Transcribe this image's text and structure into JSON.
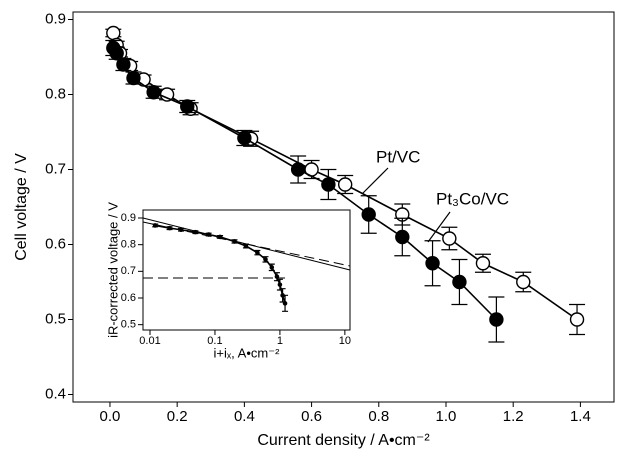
{
  "chart_data": [
    {
      "type": "line",
      "xlabel": "Current density / A•cm⁻²",
      "ylabel": "Cell voltage / V",
      "xlim": [
        -0.11,
        1.5
      ],
      "ylim": [
        0.39,
        0.91
      ],
      "xticks": [
        {
          "value": 0,
          "label": "0.0"
        },
        0.2,
        0.4,
        0.6,
        0.8,
        {
          "value": 1,
          "label": "1.0"
        },
        1.2,
        1.4
      ],
      "yticks": [
        0.4,
        0.5,
        0.6,
        0.7,
        0.8,
        0.9
      ],
      "series": [
        {
          "name": "Pt/VC",
          "marker": "open",
          "color": "#000000",
          "x": [
            0.01,
            0.02,
            0.03,
            0.06,
            0.1,
            0.17,
            0.24,
            0.42,
            0.6,
            0.7,
            0.87,
            1.01,
            1.11,
            1.23,
            1.39
          ],
          "values": [
            0.882,
            0.866,
            0.855,
            0.838,
            0.82,
            0.8,
            0.781,
            0.741,
            0.7,
            0.68,
            0.64,
            0.608,
            0.575,
            0.55,
            0.5
          ],
          "errors": [
            0.005,
            0.005,
            0.005,
            0.006,
            0.006,
            0.007,
            0.008,
            0.01,
            0.012,
            0.012,
            0.014,
            0.015,
            0.012,
            0.013,
            0.02
          ]
        },
        {
          "name": "Pt₃Co/VC",
          "marker": "filled",
          "color": "#000000",
          "x": [
            0.01,
            0.02,
            0.04,
            0.07,
            0.13,
            0.23,
            0.4,
            0.56,
            0.65,
            0.77,
            0.87,
            0.96,
            1.04,
            1.15
          ],
          "values": [
            0.862,
            0.855,
            0.84,
            0.822,
            0.803,
            0.784,
            0.742,
            0.7,
            0.68,
            0.64,
            0.61,
            0.575,
            0.55,
            0.5
          ],
          "errors": [
            0.01,
            0.008,
            0.008,
            0.008,
            0.008,
            0.008,
            0.01,
            0.018,
            0.02,
            0.025,
            0.025,
            0.03,
            0.03,
            0.03
          ]
        }
      ]
    },
    {
      "type": "line",
      "xlabel": "i+iₓ, A•cm⁻²",
      "ylabel": "iR-corrected voltage / V",
      "xscale": "log",
      "xlim": [
        0.0078,
        12
      ],
      "ylim": [
        0.48,
        0.93
      ],
      "xticks": [
        0.01,
        0.1,
        1,
        10
      ],
      "yticks": [
        0.5,
        0.6,
        0.7,
        0.8,
        0.9
      ],
      "series": [
        {
          "marker": "dot",
          "color": "#000000",
          "x": [
            0.012,
            0.02,
            0.03,
            0.05,
            0.08,
            0.12,
            0.2,
            0.3,
            0.45,
            0.6,
            0.75,
            0.9,
            1.0,
            1.1,
            1.2
          ],
          "values": [
            0.872,
            0.862,
            0.856,
            0.847,
            0.838,
            0.829,
            0.812,
            0.795,
            0.77,
            0.745,
            0.715,
            0.68,
            0.65,
            0.61,
            0.58
          ],
          "errors": [
            0.005,
            0.005,
            0.005,
            0.005,
            0.005,
            0.005,
            0.006,
            0.007,
            0.008,
            0.01,
            0.012,
            0.015,
            0.02,
            0.025,
            0.03
          ]
        },
        {
          "style": "solid",
          "color": "#000000",
          "x": [
            0.0078,
            12
          ],
          "values": [
            0.9,
            0.705
          ]
        },
        {
          "style": "dashed",
          "color": "#000000",
          "x": [
            0.0078,
            12
          ],
          "values": [
            0.885,
            0.72
          ]
        },
        {
          "style": "dashed",
          "color": "#000000",
          "x": [
            0.0078,
            1.2
          ],
          "values": [
            0.675,
            0.675
          ]
        }
      ]
    }
  ]
}
